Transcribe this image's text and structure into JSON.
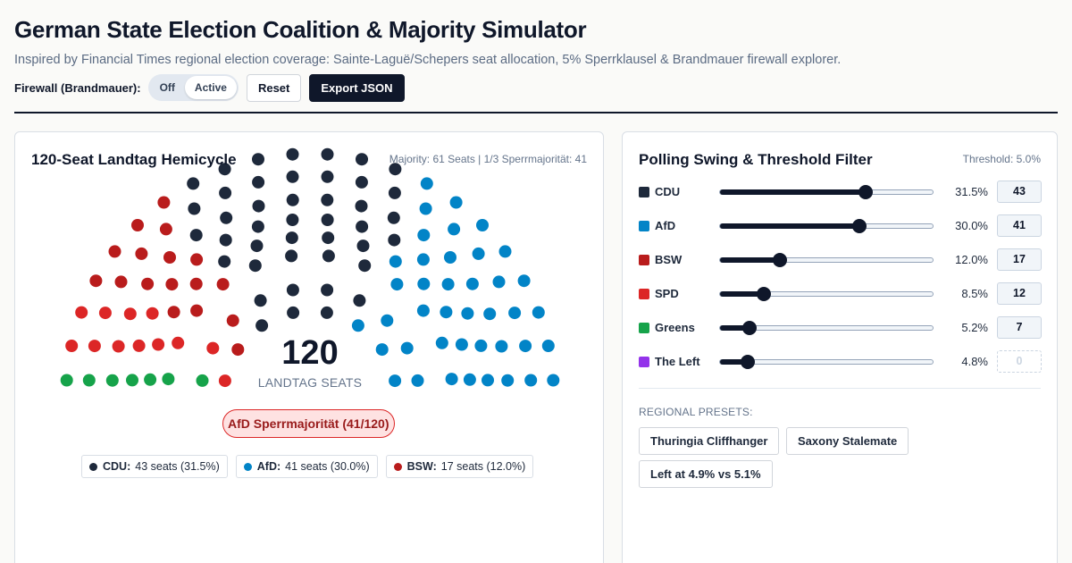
{
  "header": {
    "title": "German State Election Coalition & Majority Simulator",
    "subtitle": "Inspired by Financial Times regional election coverage: Sainte-Laguë/Schepers seat allocation, 5% Sperrklausel & Brandmauer firewall explorer."
  },
  "controls": {
    "firewall_label": "Firewall (Brandmauer):",
    "toggle_off": "Off",
    "toggle_active": "Active",
    "toggle_state": "Active",
    "reset_label": "Reset",
    "export_label": "Export JSON"
  },
  "hemicycle": {
    "title": "120-Seat Landtag Hemicycle",
    "meta": "Majority: 61 Seats | 1/3 Sperrmajorität: 41",
    "total": "120",
    "total_label": "LANDTAG SEATS",
    "alert": "AfD Sperrmajorität (41/120)",
    "legend": [
      {
        "name": "CDU:",
        "value": "43 seats (31.5%)",
        "color": "#1e293b"
      },
      {
        "name": "AfD:",
        "value": "41 seats (30.0%)",
        "color": "#0284c7"
      },
      {
        "name": "BSW:",
        "value": "17 seats (12.0%)",
        "color": "#b91c1c"
      }
    ]
  },
  "seat_allocation": [
    {
      "party": "Greens",
      "seats": 7,
      "color": "#16a34a"
    },
    {
      "party": "SPD",
      "seats": 12,
      "color": "#dc2626"
    },
    {
      "party": "BSW",
      "seats": 17,
      "color": "#b91c1c"
    },
    {
      "party": "CDU",
      "seats": 43,
      "color": "#1e293b"
    },
    {
      "party": "AfD",
      "seats": 41,
      "color": "#0284c7"
    }
  ],
  "polling": {
    "title": "Polling Swing & Threshold Filter",
    "threshold": "Threshold: 5.0%",
    "parties": [
      {
        "name": "CDU",
        "color": "#1e293b",
        "pct": "31.5%",
        "level": 0.685,
        "seats": "43"
      },
      {
        "name": "AfD",
        "color": "#0284c7",
        "pct": "30.0%",
        "level": 0.655,
        "seats": "41"
      },
      {
        "name": "BSW",
        "color": "#b91c1c",
        "pct": "12.0%",
        "level": 0.28,
        "seats": "17"
      },
      {
        "name": "SPD",
        "color": "#dc2626",
        "pct": "8.5%",
        "level": 0.205,
        "seats": "12"
      },
      {
        "name": "Greens",
        "color": "#16a34a",
        "pct": "5.2%",
        "level": 0.14,
        "seats": "7"
      },
      {
        "name": "The Left",
        "color": "#9333ea",
        "pct": "4.8%",
        "level": 0.13,
        "seats": "0"
      }
    ],
    "presets_label": "REGIONAL PRESETS:",
    "presets": [
      "Thuringia Cliffhanger",
      "Saxony Stalemate",
      "Left at 4.9% vs 5.1%"
    ]
  }
}
